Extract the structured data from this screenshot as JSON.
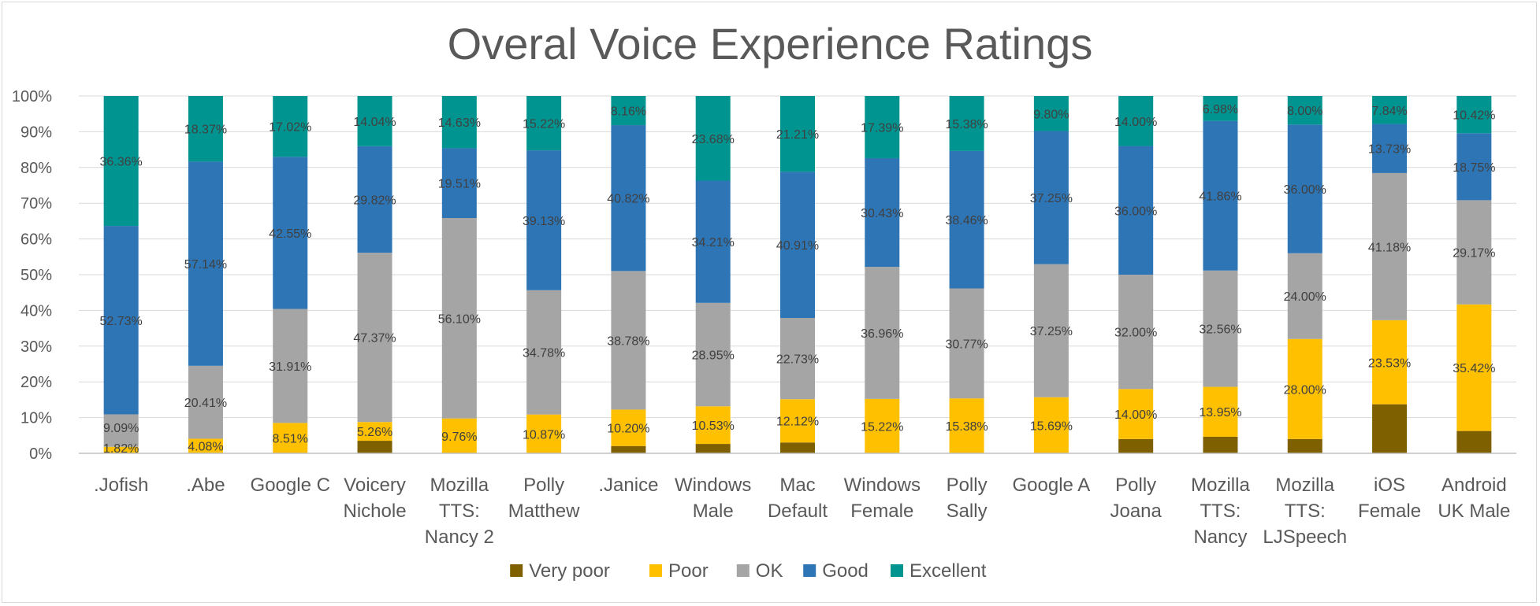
{
  "chart_data": {
    "type": "bar",
    "stacked": true,
    "title": "Overal Voice Experience Ratings",
    "xlabel": "",
    "ylabel": "",
    "ylim": [
      0,
      100
    ],
    "yticks": [
      "0%",
      "10%",
      "20%",
      "30%",
      "40%",
      "50%",
      "60%",
      "70%",
      "80%",
      "90%",
      "100%"
    ],
    "legend_position": "bottom",
    "categories": [
      [
        ".Jofish"
      ],
      [
        ".Abe"
      ],
      [
        "Google C"
      ],
      [
        "Voicery",
        "Nichole"
      ],
      [
        "Mozilla",
        "TTS:",
        "Nancy 2"
      ],
      [
        "Polly",
        "Matthew"
      ],
      [
        ".Janice"
      ],
      [
        "Windows",
        "Male"
      ],
      [
        "Mac",
        "Default"
      ],
      [
        "Windows",
        "Female"
      ],
      [
        "Polly",
        "Sally"
      ],
      [
        "Google A"
      ],
      [
        "Polly",
        "Joana"
      ],
      [
        "Mozilla",
        "TTS:",
        "Nancy"
      ],
      [
        "Mozilla",
        "TTS:",
        "LJSpeech"
      ],
      [
        "iOS",
        "Female"
      ],
      [
        "Android",
        "UK Male"
      ]
    ],
    "series": [
      {
        "name": "Very poor",
        "color": "#7F6000",
        "values": [
          0,
          0,
          0,
          3.51,
          0,
          0,
          2.04,
          2.63,
          3.03,
          0,
          0,
          0,
          4.0,
          4.65,
          4.0,
          13.73,
          6.25
        ],
        "labels": [
          null,
          null,
          null,
          null,
          null,
          null,
          null,
          null,
          null,
          null,
          null,
          null,
          null,
          null,
          null,
          null,
          null
        ]
      },
      {
        "name": "Poor",
        "color": "#FFC000",
        "values": [
          1.82,
          4.08,
          8.51,
          5.26,
          9.76,
          10.87,
          10.2,
          10.53,
          12.12,
          15.22,
          15.38,
          15.69,
          14.0,
          13.95,
          28.0,
          23.53,
          35.42
        ],
        "labels": [
          "1.82%",
          "4.08%",
          "8.51%",
          "5.26%",
          "9.76%",
          "10.87%",
          "10.20%",
          "10.53%",
          "12.12%",
          "15.22%",
          "15.38%",
          "15.69%",
          "14.00%",
          "13.95%",
          "28.00%",
          "23.53%",
          "35.42%"
        ]
      },
      {
        "name": "OK",
        "color": "#A5A5A5",
        "values": [
          9.09,
          20.41,
          31.91,
          47.37,
          56.1,
          34.78,
          38.78,
          28.95,
          22.73,
          36.96,
          30.77,
          37.25,
          32.0,
          32.56,
          24.0,
          41.18,
          29.17
        ],
        "labels": [
          "9.09%",
          "20.41%",
          "31.91%",
          "47.37%",
          "56.10%",
          "34.78%",
          "38.78%",
          "28.95%",
          "22.73%",
          "36.96%",
          "30.77%",
          "37.25%",
          "32.00%",
          "32.56%",
          "24.00%",
          "41.18%",
          "29.17%"
        ]
      },
      {
        "name": "Good",
        "color": "#2E75B6",
        "values": [
          52.73,
          57.14,
          42.55,
          29.82,
          19.51,
          39.13,
          40.82,
          34.21,
          40.91,
          30.43,
          38.46,
          37.25,
          36.0,
          41.86,
          36.0,
          13.73,
          18.75
        ],
        "labels": [
          "52.73%",
          "57.14%",
          "42.55%",
          "29.82%",
          "19.51%",
          "39.13%",
          "40.82%",
          "34.21%",
          "40.91%",
          "30.43%",
          "38.46%",
          "37.25%",
          "36.00%",
          "41.86%",
          "36.00%",
          "13.73%",
          "18.75%"
        ]
      },
      {
        "name": "Excellent",
        "color": "#009490",
        "values": [
          36.36,
          18.37,
          17.02,
          14.04,
          14.63,
          15.22,
          8.16,
          23.68,
          21.21,
          17.39,
          15.38,
          9.8,
          14.0,
          6.98,
          8.0,
          7.84,
          10.42
        ],
        "labels": [
          "36.36%",
          "18.37%",
          "17.02%",
          "14.04%",
          "14.63%",
          "15.22%",
          "8.16%",
          "23.68%",
          "21.21%",
          "17.39%",
          "15.38%",
          "9.80%",
          "14.00%",
          "6.98%",
          "8.00%",
          "7.84%",
          "10.42%"
        ]
      }
    ]
  },
  "colors": {
    "gridline": "#d9d9d9",
    "axis": "#bfbfbf",
    "text": "#595959",
    "label_text": "#404040"
  }
}
